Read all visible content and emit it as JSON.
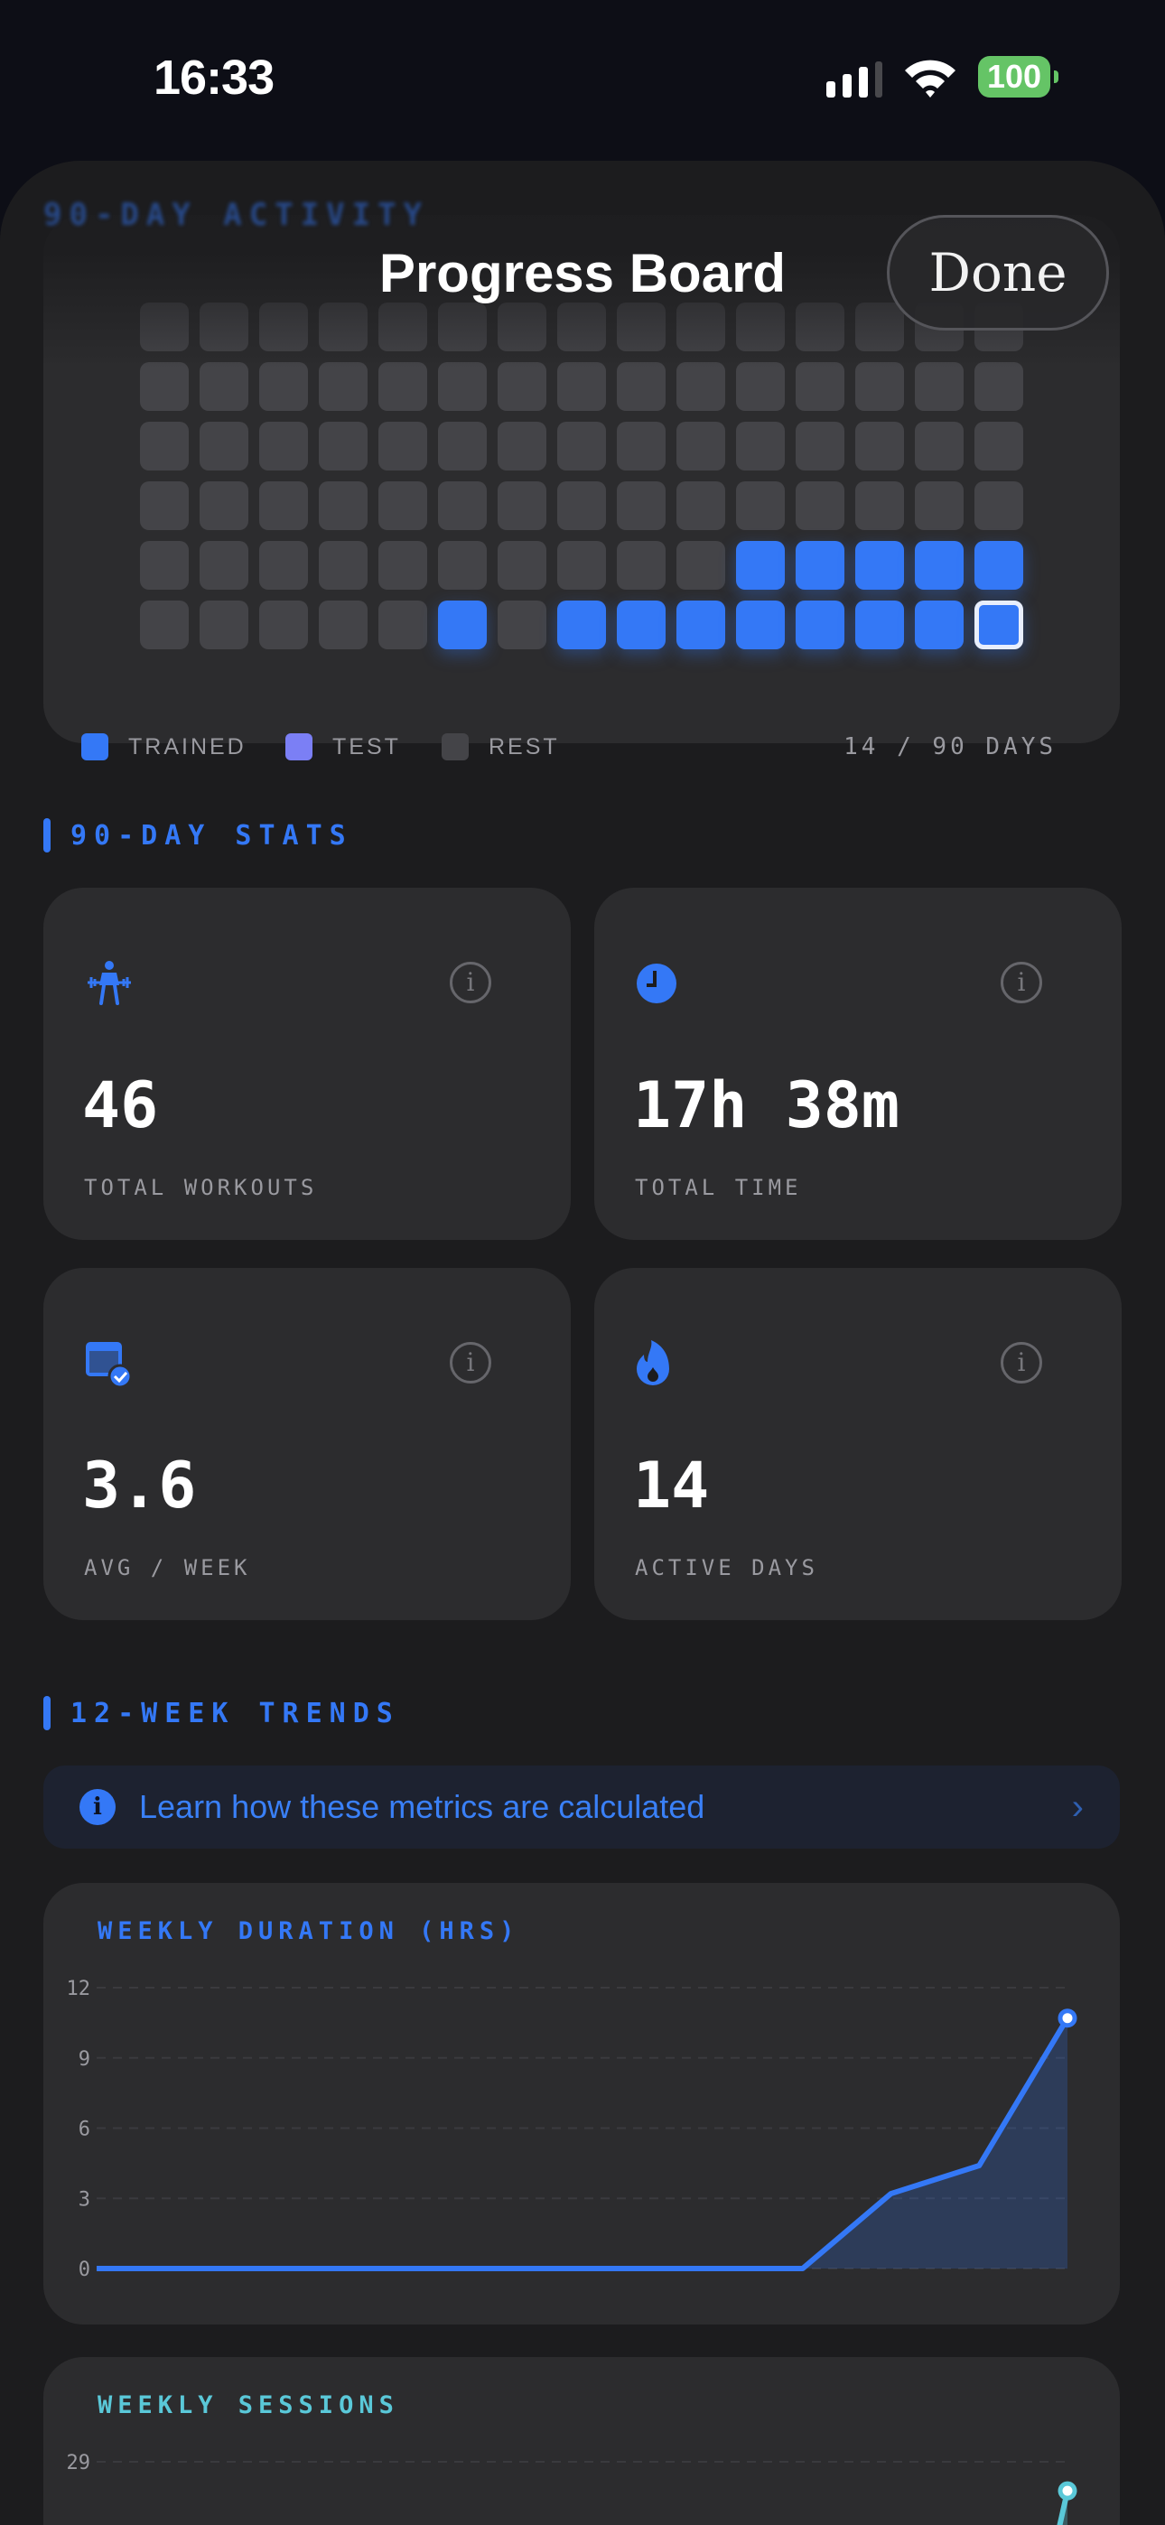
{
  "status_bar": {
    "time": "16:33",
    "battery": "100",
    "signal_bars": 3,
    "colors": {
      "battery": "#65c466"
    }
  },
  "header": {
    "title": "Progress Board",
    "done_label": "Done",
    "blurred_section_label": "90-DAY ACTIVITY"
  },
  "activity": {
    "columns": 15,
    "rows": 6,
    "trained_cells": [
      [
        4,
        10
      ],
      [
        4,
        11
      ],
      [
        4,
        12
      ],
      [
        4,
        13
      ],
      [
        4,
        14
      ],
      [
        5,
        5
      ],
      [
        5,
        7
      ],
      [
        5,
        8
      ],
      [
        5,
        9
      ],
      [
        5,
        10
      ],
      [
        5,
        11
      ],
      [
        5,
        12
      ],
      [
        5,
        13
      ],
      [
        5,
        14
      ]
    ],
    "today_cell": [
      5,
      14
    ],
    "legend": [
      {
        "label": "TRAINED",
        "color": "#3478f6"
      },
      {
        "label": "TEST",
        "color": "#7b7ff5"
      },
      {
        "label": "REST",
        "color": "#444448"
      }
    ],
    "days_summary": "14 / 90 DAYS"
  },
  "stats": {
    "section_label": "90-DAY STATS",
    "cards": [
      {
        "icon": "weightlifting-icon",
        "value": "46",
        "label": "TOTAL WORKOUTS"
      },
      {
        "icon": "clock-icon",
        "value": "17h 38m",
        "label": "TOTAL TIME"
      },
      {
        "icon": "calendar-check-icon",
        "value": "3.6",
        "label": "AVG / WEEK"
      },
      {
        "icon": "flame-icon",
        "value": "14",
        "label": "ACTIVE DAYS"
      }
    ]
  },
  "trends": {
    "section_label": "12-WEEK TRENDS",
    "banner_text": "Learn how these metrics are calculated"
  },
  "chart_data": [
    {
      "type": "area",
      "title": "WEEKLY DURATION (HRS)",
      "color": "#3478f6",
      "ylim": [
        0,
        12
      ],
      "yticks": [
        "0",
        "3",
        "6",
        "9",
        "12"
      ],
      "grid": true,
      "x": [
        1,
        2,
        3,
        4,
        5,
        6,
        7,
        8,
        9,
        10,
        11,
        12
      ],
      "values": [
        0,
        0,
        0,
        0,
        0,
        0,
        0,
        0,
        0,
        3.2,
        4.4,
        10.7
      ]
    },
    {
      "type": "area",
      "title": "WEEKLY SESSIONS",
      "color": "#5ac8d8",
      "ylim": [
        0,
        29
      ],
      "yticks": [
        "29"
      ],
      "grid": true,
      "x": [
        1,
        2,
        3,
        4,
        5,
        6,
        7,
        8,
        9,
        10,
        11,
        12
      ],
      "values": [
        null,
        null,
        null,
        null,
        null,
        null,
        null,
        null,
        null,
        null,
        null,
        26
      ]
    }
  ],
  "colors": {
    "accent": "#3478f6",
    "card": "#2c2c2e",
    "background": "#1c1c1e",
    "rest": "#444448",
    "test": "#7b7ff5",
    "sessions": "#5ac8d8"
  }
}
